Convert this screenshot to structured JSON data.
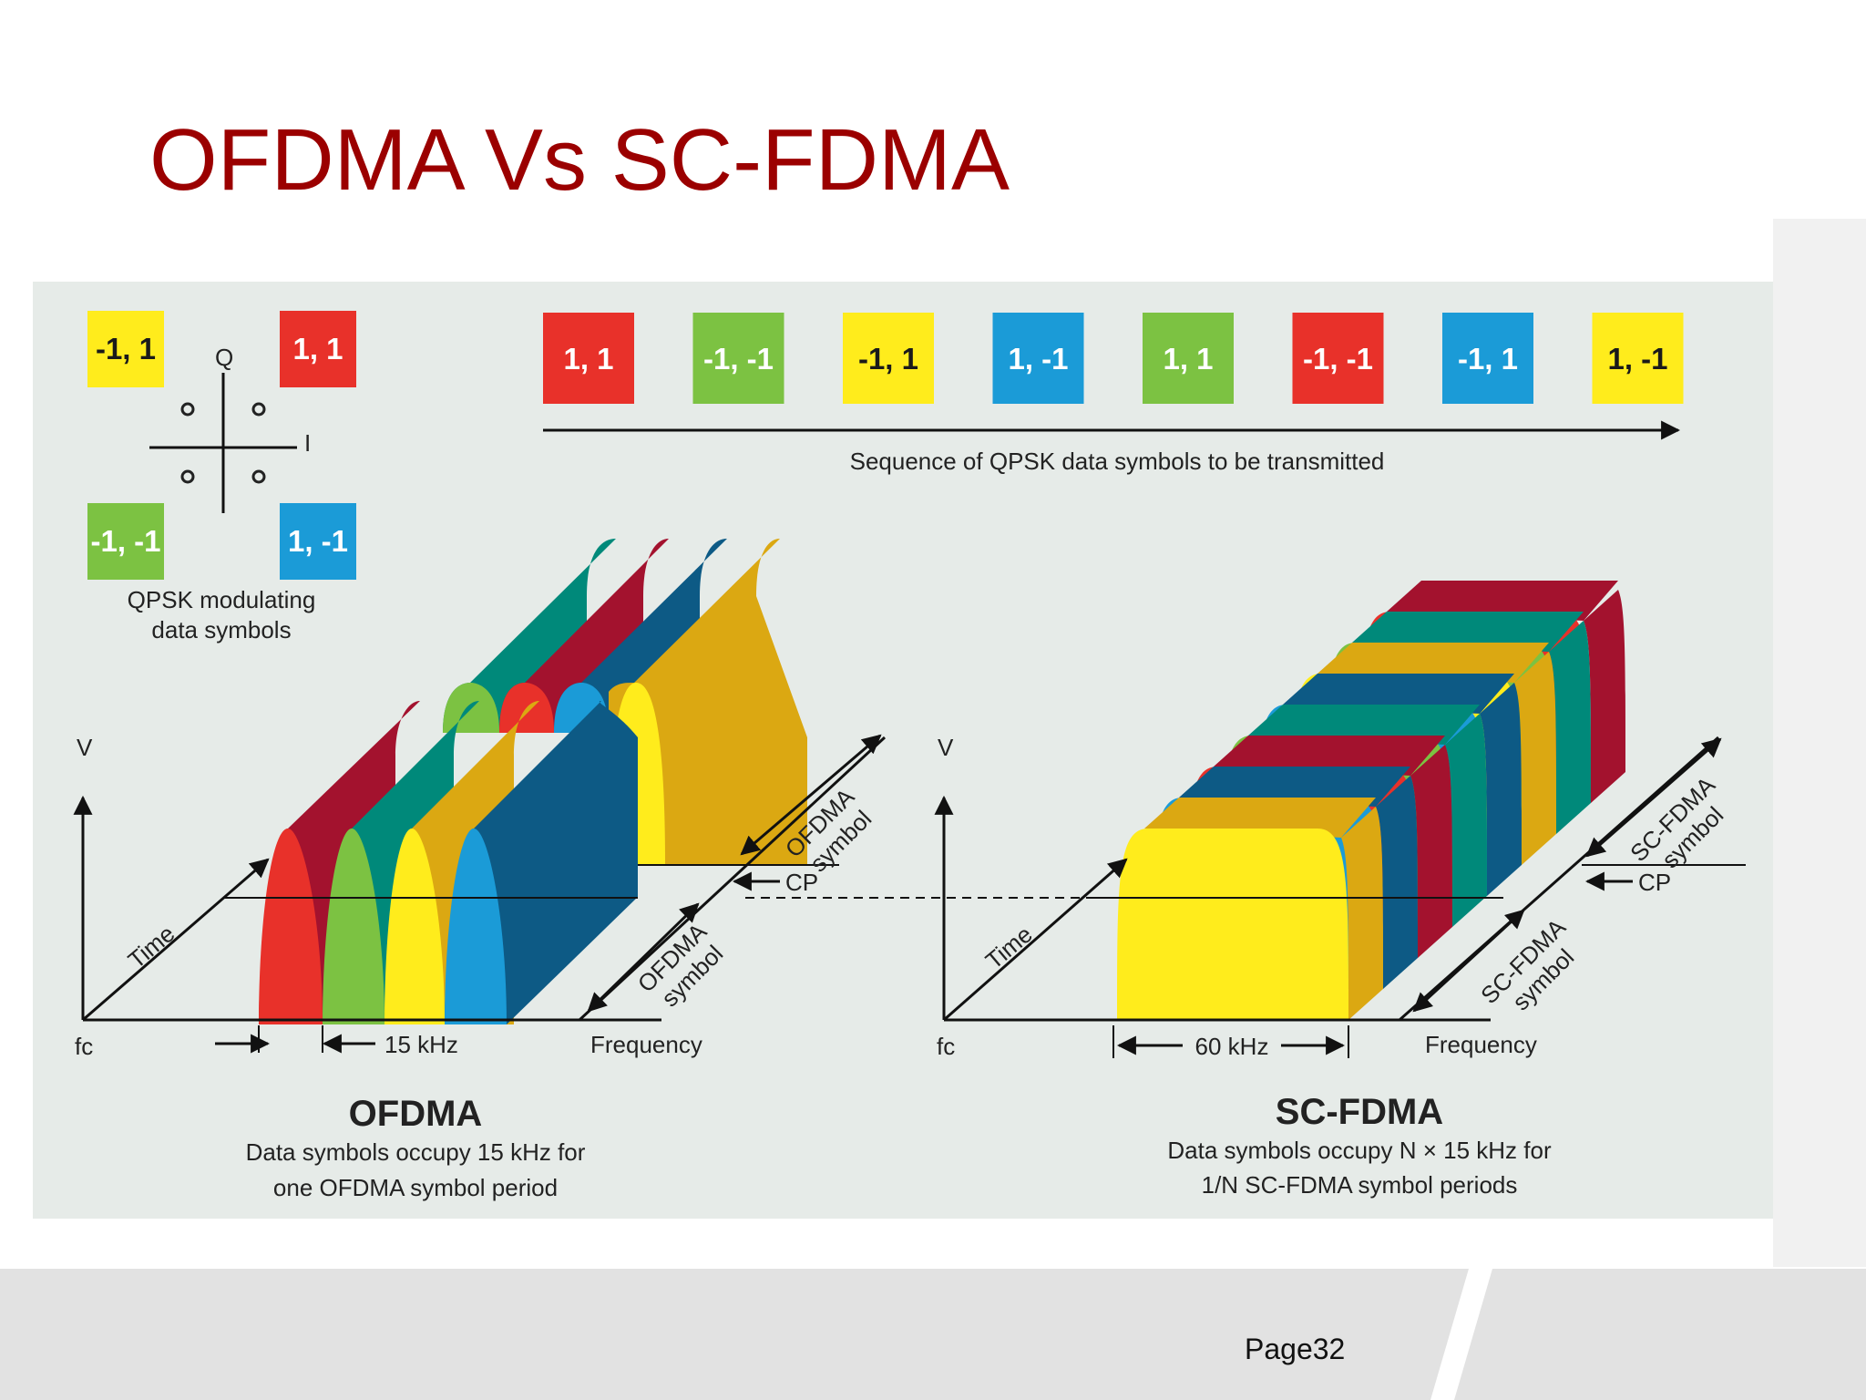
{
  "title": "OFDMA Vs SC-FDMA",
  "page_label": "Page32",
  "colors": {
    "title": "#9b0000",
    "red": "#e8312a",
    "dark_red": "#a3122e",
    "green": "#7cc242",
    "teal": "#00897a",
    "yellow": "#ffec1c",
    "gold": "#dba812",
    "blue": "#1b9bd7",
    "navy": "#0d5a85",
    "figure_bg": "#e6ebe8"
  },
  "figure": {
    "constellation": {
      "q_label": "Q",
      "i_label": "I",
      "symbols": [
        {
          "label": "-1, 1",
          "color": "yellow"
        },
        {
          "label": "1, 1",
          "color": "red"
        },
        {
          "label": "-1, -1",
          "color": "green"
        },
        {
          "label": "1, -1",
          "color": "blue"
        }
      ],
      "caption_line1": "QPSK modulating",
      "caption_line2": "data symbols"
    },
    "sequence": {
      "symbols": [
        {
          "label": "1, 1",
          "color": "red"
        },
        {
          "label": "-1, -1",
          "color": "green"
        },
        {
          "label": "-1, 1",
          "color": "yellow"
        },
        {
          "label": "1, -1",
          "color": "blue"
        },
        {
          "label": "1, 1",
          "color": "green"
        },
        {
          "label": "-1, -1",
          "color": "red"
        },
        {
          "label": "-1, 1",
          "color": "blue"
        },
        {
          "label": "1, -1",
          "color": "yellow"
        }
      ],
      "caption": "Sequence of QPSK data symbols to be transmitted"
    },
    "ofdma": {
      "v_label": "V",
      "time_label": "Time",
      "fc_label": "fc",
      "bandwidth_label": "15 kHz",
      "frequency_label": "Frequency",
      "cp_label": "CP",
      "symbol_label_line1": "OFDMA",
      "symbol_label_line2": "symbol",
      "heading": "OFDMA",
      "caption_line1": "Data symbols occupy 15 kHz for",
      "caption_line2": "one OFDMA symbol period"
    },
    "scfdma": {
      "v_label": "V",
      "time_label": "Time",
      "fc_label": "fc",
      "bandwidth_label": "60 kHz",
      "frequency_label": "Frequency",
      "cp_label": "CP",
      "symbol_label_line1": "SC-FDMA",
      "symbol_label_line2": "symbol",
      "heading": "SC-FDMA",
      "caption_line1": "Data symbols occupy N × 15 kHz for",
      "caption_line2": "1/N SC-FDMA symbol periods"
    }
  }
}
